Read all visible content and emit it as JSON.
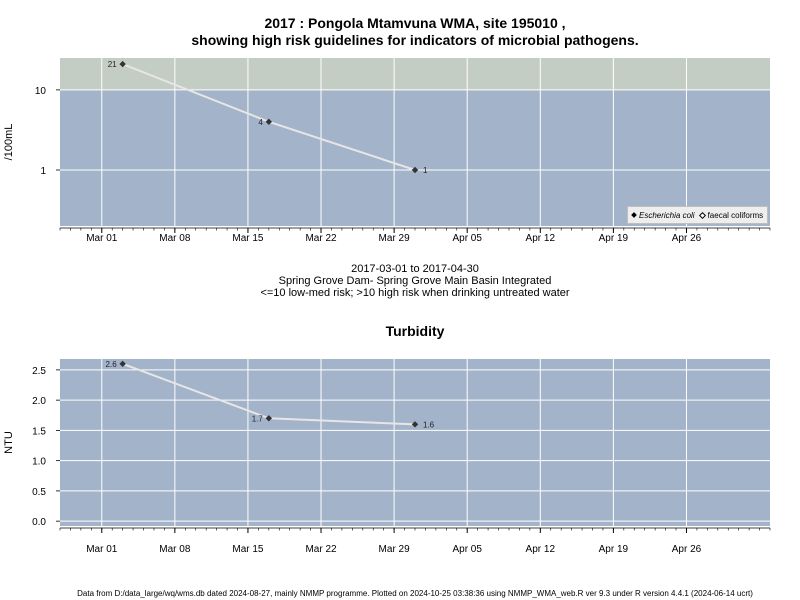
{
  "header": {
    "title_line1": "2017 : Pongola Mtamvuna WMA, site 195010 ,",
    "title_line2": "showing high risk guidelines for indicators of microbial pathogens."
  },
  "colors": {
    "panel_bg": "#a3b3ca",
    "high_risk_band": "#c4cdc3",
    "grid": "#ffffff",
    "series_line": "#e6e6e6",
    "marker": "#333333"
  },
  "subtitle": {
    "date_range": "2017-03-01 to 2017-04-30",
    "location": "Spring Grove Dam- Spring Grove Main Basin Integrated",
    "guideline": "<=10 low-med risk; >10 high risk when drinking untreated water"
  },
  "footer": {
    "text": "Data from D:/data_large/wq/wms.db dated 2024-08-27, mainly NMMP programme. Plotted on 2024-10-25 03:38:36 using NMMP_WMA_web.R ver 9.3 under R version 4.4.1 (2024-06-14 ucrt)"
  },
  "chart_data": [
    {
      "type": "line",
      "title": "",
      "xlabel": "",
      "ylabel": "/100mL",
      "y_scale": "log",
      "ylim": [
        0.2,
        25
      ],
      "xlim": [
        "2017-02-25",
        "2017-05-04"
      ],
      "x_ticks": [
        "2017-03-01",
        "2017-03-08",
        "2017-03-15",
        "2017-03-22",
        "2017-03-29",
        "2017-04-05",
        "2017-04-12",
        "2017-04-19",
        "2017-04-26"
      ],
      "x_tick_labels": [
        "Mar 01",
        "Mar 08",
        "Mar 15",
        "Mar 22",
        "Mar 29",
        "Apr 05",
        "Apr 12",
        "Apr 19",
        "Apr 26"
      ],
      "y_ticks": [
        1,
        10
      ],
      "y_tick_labels": [
        "1",
        "10"
      ],
      "high_risk_threshold": 10,
      "grid": true,
      "legend_position": "bottom-right",
      "legend": [
        "Escherichia coli",
        "faecal coliforms"
      ],
      "series": [
        {
          "name": "Escherichia coli",
          "x": [
            "2017-03-03",
            "2017-03-17",
            "2017-03-31"
          ],
          "values": [
            21,
            4,
            1
          ],
          "labels": [
            "21",
            "4",
            "1"
          ]
        }
      ]
    },
    {
      "type": "line",
      "title": "Turbidity",
      "xlabel": "",
      "ylabel": "NTU",
      "ylim": [
        -0.08,
        2.68
      ],
      "xlim": [
        "2017-02-25",
        "2017-05-04"
      ],
      "x_ticks": [
        "2017-03-01",
        "2017-03-08",
        "2017-03-15",
        "2017-03-22",
        "2017-03-29",
        "2017-04-05",
        "2017-04-12",
        "2017-04-19",
        "2017-04-26"
      ],
      "x_tick_labels": [
        "Mar 01",
        "Mar 08",
        "Mar 15",
        "Mar 22",
        "Mar 29",
        "Apr 05",
        "Apr 12",
        "Apr 19",
        "Apr 26"
      ],
      "y_ticks": [
        0,
        0.5,
        1,
        1.5,
        2,
        2.5
      ],
      "y_tick_labels": [
        "0.0",
        "0.5",
        "1.0",
        "1.5",
        "2.0",
        "2.5"
      ],
      "grid": true,
      "series": [
        {
          "x": [
            "2017-03-03",
            "2017-03-17",
            "2017-03-31"
          ],
          "values": [
            2.6,
            1.7,
            1.6
          ],
          "labels": [
            "2.6",
            "1.7",
            "1.6"
          ]
        }
      ]
    }
  ]
}
